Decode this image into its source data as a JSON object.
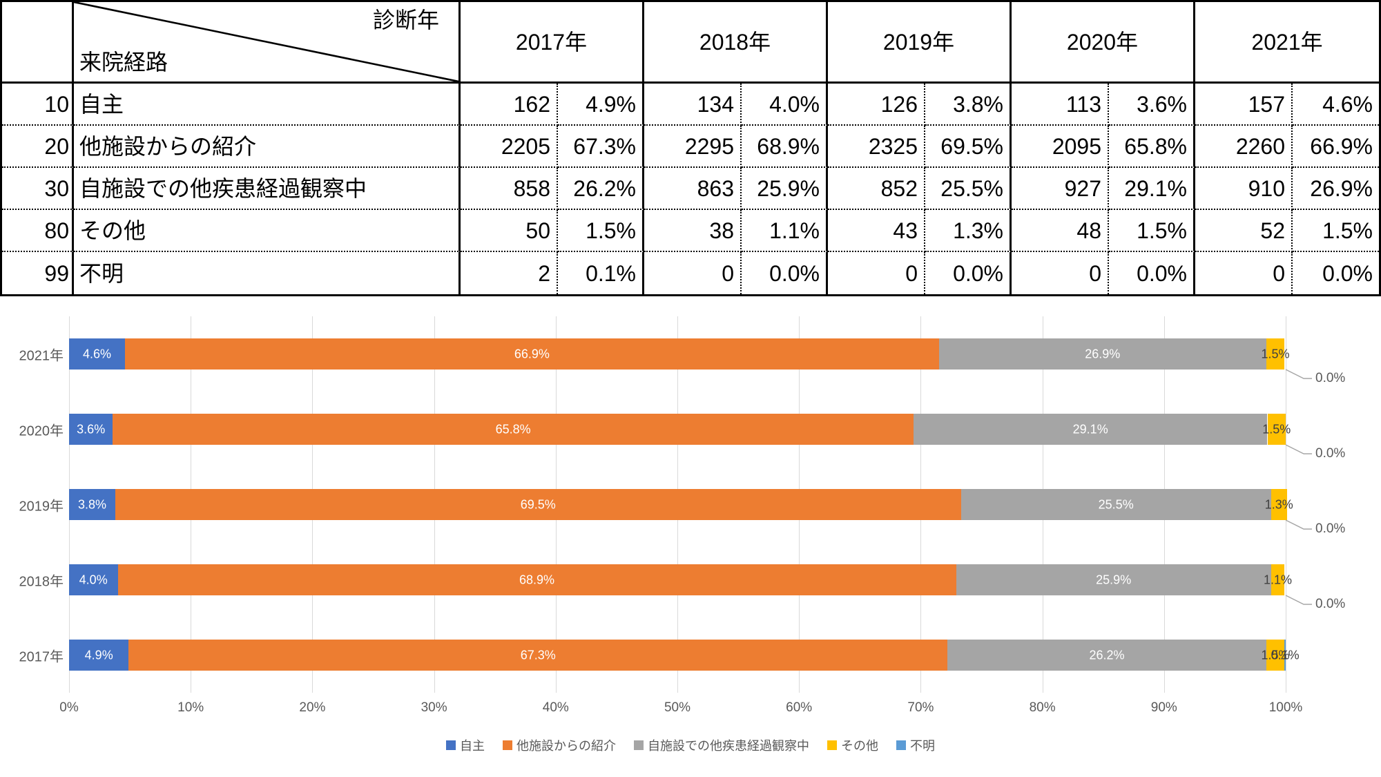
{
  "table": {
    "corner": {
      "top_right": "診断年",
      "bottom_left": "来院経路"
    },
    "years": [
      "2017年",
      "2018年",
      "2019年",
      "2020年",
      "2021年"
    ],
    "rows": [
      {
        "code": "10",
        "label": "自主",
        "values": [
          [
            162,
            "4.9%"
          ],
          [
            134,
            "4.0%"
          ],
          [
            126,
            "3.8%"
          ],
          [
            113,
            "3.6%"
          ],
          [
            157,
            "4.6%"
          ]
        ]
      },
      {
        "code": "20",
        "label": "他施設からの紹介",
        "values": [
          [
            2205,
            "67.3%"
          ],
          [
            2295,
            "68.9%"
          ],
          [
            2325,
            "69.5%"
          ],
          [
            2095,
            "65.8%"
          ],
          [
            2260,
            "66.9%"
          ]
        ]
      },
      {
        "code": "30",
        "label": "自施設での他疾患経過観察中",
        "values": [
          [
            858,
            "26.2%"
          ],
          [
            863,
            "25.9%"
          ],
          [
            852,
            "25.5%"
          ],
          [
            927,
            "29.1%"
          ],
          [
            910,
            "26.9%"
          ]
        ]
      },
      {
        "code": "80",
        "label": "その他",
        "values": [
          [
            50,
            "1.5%"
          ],
          [
            38,
            "1.1%"
          ],
          [
            43,
            "1.3%"
          ],
          [
            48,
            "1.5%"
          ],
          [
            52,
            "1.5%"
          ]
        ]
      },
      {
        "code": "99",
        "label": "不明",
        "values": [
          [
            2,
            "0.1%"
          ],
          [
            0,
            "0.0%"
          ],
          [
            0,
            "0.0%"
          ],
          [
            0,
            "0.0%"
          ],
          [
            0,
            "0.0%"
          ]
        ]
      }
    ]
  },
  "chart_data": {
    "type": "bar",
    "orientation": "horizontal",
    "stacked": true,
    "categories": [
      "2021年",
      "2020年",
      "2019年",
      "2018年",
      "2017年"
    ],
    "series": [
      {
        "name": "自主",
        "color": "#4472C4",
        "label_color": "#FFFFFF",
        "values": [
          4.6,
          3.6,
          3.8,
          4.0,
          4.9
        ]
      },
      {
        "name": "他施設からの紹介",
        "color": "#ED7D31",
        "label_color": "#FFFFFF",
        "values": [
          66.9,
          65.8,
          69.5,
          68.9,
          67.3
        ]
      },
      {
        "name": "自施設での他疾患経過観察中",
        "color": "#A5A5A5",
        "label_color": "#FFFFFF",
        "values": [
          26.9,
          29.1,
          25.5,
          25.9,
          26.2
        ]
      },
      {
        "name": "その他",
        "color": "#FFC000",
        "label_color": "#404040",
        "values": [
          1.5,
          1.5,
          1.3,
          1.1,
          1.5
        ]
      },
      {
        "name": "不明",
        "color": "#5B9BD5",
        "label_color": "#404040",
        "values": [
          0.0,
          0.0,
          0.0,
          0.0,
          0.1
        ]
      }
    ],
    "x_ticks": [
      "0%",
      "10%",
      "20%",
      "30%",
      "40%",
      "50%",
      "60%",
      "70%",
      "80%",
      "90%",
      "100%"
    ],
    "xlim": [
      0,
      100
    ],
    "grid": true,
    "legend_position": "bottom",
    "zero_callout_label": "0.0%",
    "colors": {
      "gridline": "#D9D9D9",
      "leader_line": "#A6A6A6",
      "axis_text": "#595959"
    }
  }
}
